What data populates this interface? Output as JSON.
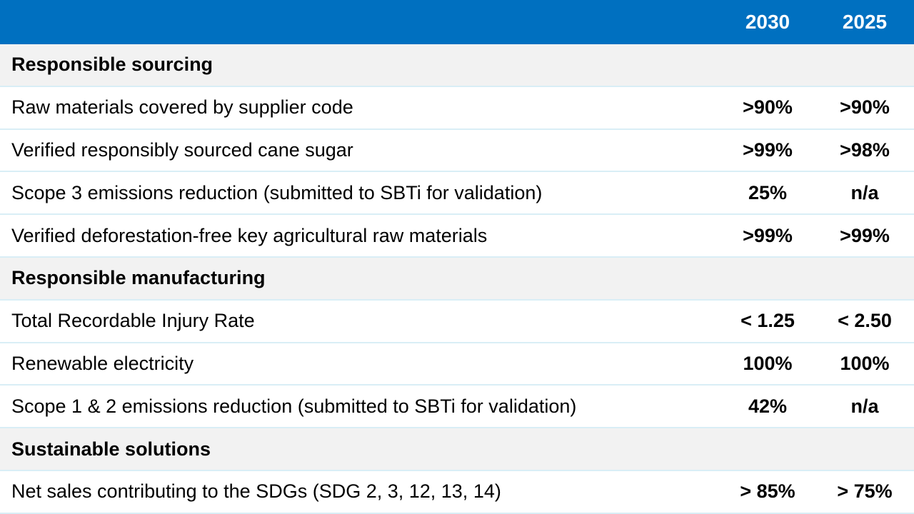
{
  "header": {
    "col_2030": "2030",
    "col_2025": "2025"
  },
  "rows": [
    {
      "type": "section",
      "label": "Responsible sourcing",
      "v2030": "",
      "v2025": ""
    },
    {
      "type": "item",
      "label": "Raw materials covered by supplier code",
      "v2030": ">90%",
      "v2025": ">90%"
    },
    {
      "type": "item",
      "label": "Verified responsibly sourced cane sugar",
      "v2030": ">99%",
      "v2025": ">98%"
    },
    {
      "type": "item",
      "label": "Scope 3 emissions reduction (submitted to SBTi for validation)",
      "v2030": "25%",
      "v2025": "n/a"
    },
    {
      "type": "item",
      "label": "Verified deforestation-free key agricultural raw materials",
      "v2030": ">99%",
      "v2025": ">99%"
    },
    {
      "type": "section",
      "label": "Responsible manufacturing",
      "v2030": "",
      "v2025": ""
    },
    {
      "type": "item",
      "label": "Total Recordable Injury Rate",
      "v2030": "< 1.25",
      "v2025": "< 2.50"
    },
    {
      "type": "item",
      "label": "Renewable electricity",
      "v2030": "100%",
      "v2025": "100%"
    },
    {
      "type": "item",
      "label": "Scope 1 & 2 emissions reduction (submitted to SBTi for validation)",
      "v2030": "42%",
      "v2025": "n/a"
    },
    {
      "type": "section",
      "label": "Sustainable solutions",
      "v2030": "",
      "v2025": ""
    },
    {
      "type": "item",
      "label": "Net sales contributing to the SDGs (SDG 2, 3, 12, 13, 14)",
      "v2030": "> 85%",
      "v2025": "> 75%"
    }
  ],
  "colors": {
    "header_bg": "#0070c0",
    "section_bg": "#f2f2f2",
    "divider": "#d9eef6"
  }
}
